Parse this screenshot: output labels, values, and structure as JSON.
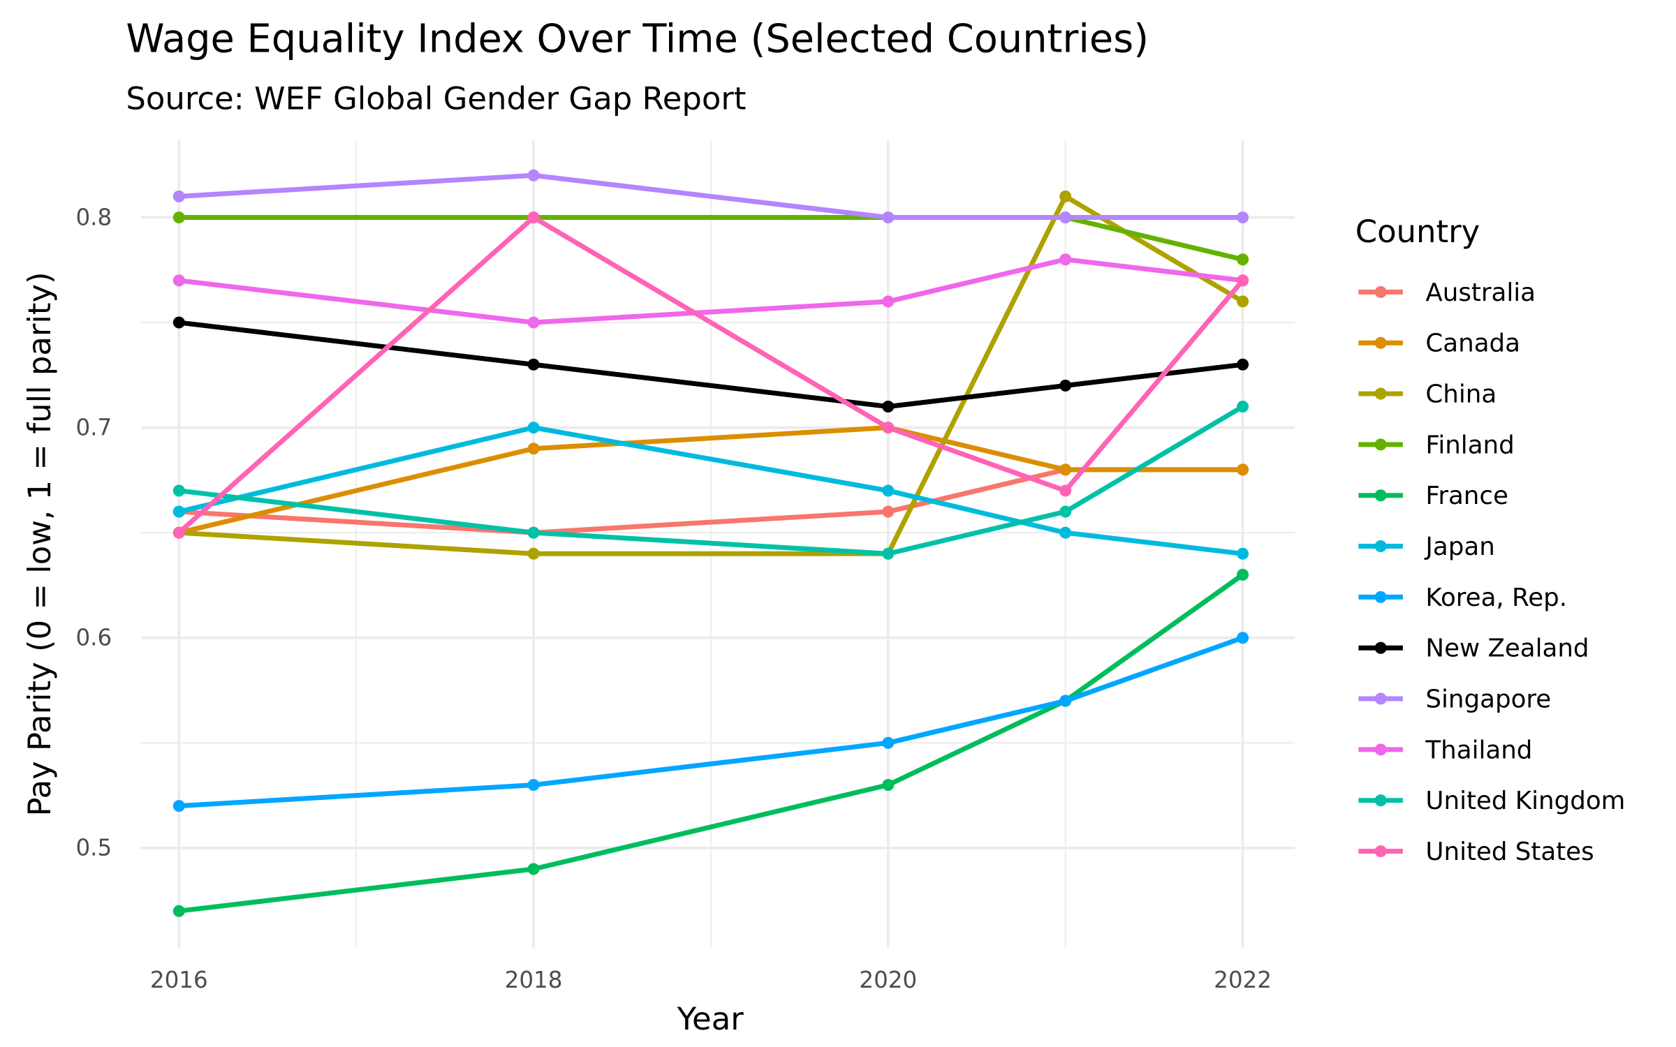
{
  "chart_data": {
    "type": "line",
    "title": "Wage Equality Index Over Time (Selected Countries)",
    "subtitle": "Source: WEF Global Gender Gap Report",
    "xlabel": "Year",
    "ylabel": "Pay Parity (0 = low, 1 = full parity)",
    "x": [
      2016,
      2018,
      2020,
      2021,
      2022
    ],
    "xlim": [
      2015.8,
      2022.2
    ],
    "ylim": [
      0.455,
      0.835
    ],
    "x_ticks": [
      "2016",
      "2018",
      "2020",
      "2022"
    ],
    "y_ticks": [
      "0.5",
      "0.6",
      "0.7",
      "0.8"
    ],
    "grid": true,
    "legend_title": "Country",
    "legend_position": "right",
    "series": [
      {
        "name": "Australia",
        "color": "#F8766D",
        "values": [
          0.66,
          0.65,
          0.66,
          0.68,
          0.68
        ]
      },
      {
        "name": "Canada",
        "color": "#DB8E00",
        "values": [
          0.65,
          0.69,
          0.7,
          0.68,
          0.68
        ]
      },
      {
        "name": "China",
        "color": "#AEA200",
        "values": [
          0.65,
          0.64,
          0.64,
          0.81,
          0.76
        ]
      },
      {
        "name": "Finland",
        "color": "#64B200",
        "values": [
          0.8,
          0.8,
          0.8,
          0.8,
          0.78
        ]
      },
      {
        "name": "France",
        "color": "#00BD5C",
        "values": [
          0.47,
          0.49,
          0.53,
          0.57,
          0.63
        ]
      },
      {
        "name": "Japan",
        "color": "#00BADE",
        "values": [
          0.66,
          0.7,
          0.67,
          0.65,
          0.64
        ]
      },
      {
        "name": "Korea, Rep.",
        "color": "#00A6FF",
        "values": [
          0.52,
          0.53,
          0.55,
          0.57,
          0.6
        ]
      },
      {
        "name": "New Zealand",
        "color": "#000000",
        "values": [
          0.75,
          0.73,
          0.71,
          0.72,
          0.73
        ]
      },
      {
        "name": "Singapore",
        "color": "#B385FF",
        "values": [
          0.81,
          0.82,
          0.8,
          0.8,
          0.8
        ]
      },
      {
        "name": "Thailand",
        "color": "#EF67EB",
        "values": [
          0.77,
          0.75,
          0.76,
          0.78,
          0.77
        ]
      },
      {
        "name": "United Kingdom",
        "color": "#00C1A7",
        "values": [
          0.67,
          0.65,
          0.64,
          0.66,
          0.71
        ]
      },
      {
        "name": "United States",
        "color": "#FF63B6",
        "values": [
          0.65,
          0.8,
          0.7,
          0.67,
          0.77
        ]
      }
    ]
  }
}
